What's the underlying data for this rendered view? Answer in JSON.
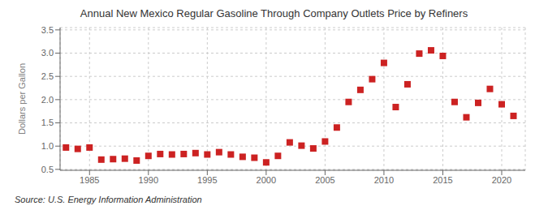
{
  "chart_data": {
    "type": "scatter",
    "title": "Annual New Mexico Regular Gasoline Through Company Outlets Price by Refiners",
    "y_label": "Dollars per Gallon",
    "annotations": [
      "Source: U.S. Energy Information Administration"
    ],
    "x": [
      1983,
      1984,
      1985,
      1986,
      1987,
      1988,
      1989,
      1990,
      1991,
      1992,
      1993,
      1994,
      1995,
      1996,
      1997,
      1998,
      1999,
      2000,
      2001,
      2002,
      2003,
      2004,
      2005,
      2006,
      2007,
      2008,
      2009,
      2010,
      2011,
      2012,
      2013,
      2014,
      2015,
      2016,
      2017,
      2018,
      2019,
      2020,
      2021
    ],
    "values": [
      0.97,
      0.94,
      0.97,
      0.71,
      0.72,
      0.73,
      0.69,
      0.79,
      0.83,
      0.82,
      0.83,
      0.85,
      0.82,
      0.87,
      0.82,
      0.77,
      0.75,
      0.65,
      0.79,
      1.08,
      1.01,
      0.95,
      1.1,
      1.4,
      1.95,
      2.21,
      2.44,
      2.79,
      1.84,
      2.33,
      2.99,
      3.06,
      2.94,
      1.95,
      1.62,
      1.93,
      2.23,
      1.9,
      1.65
    ],
    "color": "#cc2222",
    "marker": "square",
    "xlim": [
      1982.5,
      2022
    ],
    "ylim": [
      0.48,
      3.55
    ],
    "xticks": [
      1985,
      1990,
      1995,
      2000,
      2005,
      2010,
      2015,
      2020
    ],
    "yticks": [
      0.5,
      {
        "value": 1.0,
        "label": "1.0"
      },
      1.5,
      {
        "value": 2.0,
        "label": "2.0"
      },
      2.5,
      {
        "value": 3.0,
        "label": "3.0"
      },
      3.5
    ],
    "grid": true
  }
}
